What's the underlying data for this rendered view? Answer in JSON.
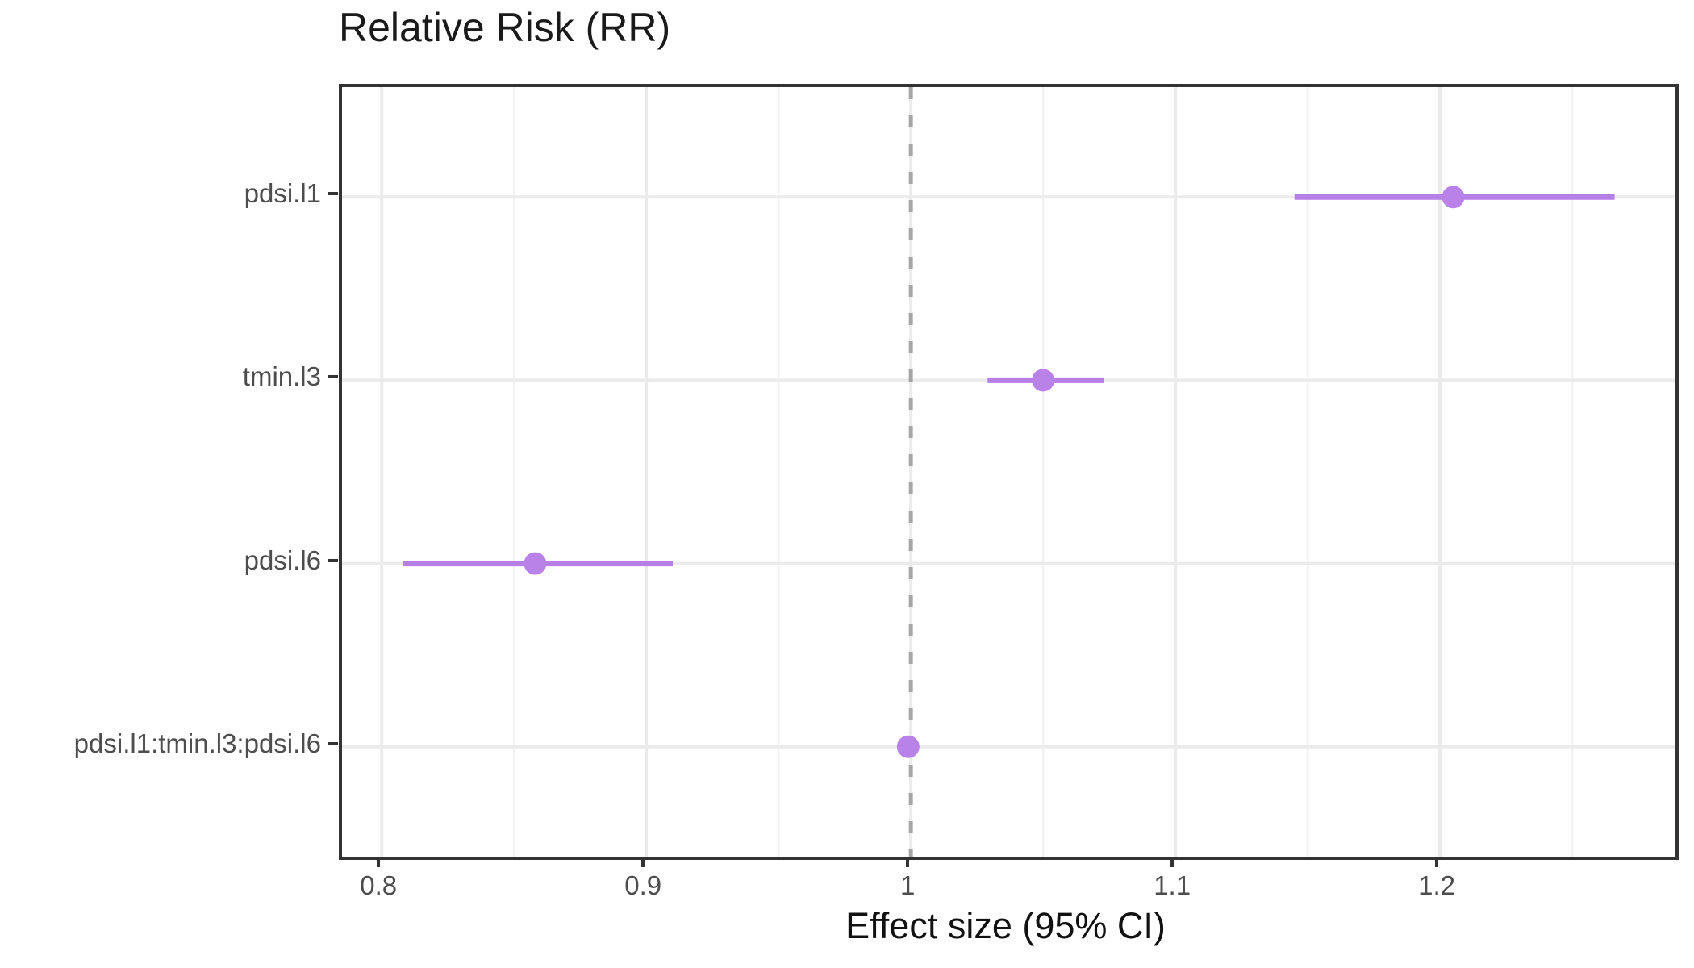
{
  "chart_data": {
    "type": "scatter",
    "subtype": "forest-plot",
    "title": "Relative Risk (RR)",
    "xlabel": "Effect size (95% CI)",
    "ylabel": "",
    "grid": true,
    "legend": "none",
    "categories": [
      "pdsi.l1",
      "tmin.l3",
      "pdsi.l6",
      "pdsi.l1:tmin.l3:pdsi.l6"
    ],
    "points": [
      {
        "label": "pdsi.l1",
        "estimate": 1.205,
        "ci_low": 1.145,
        "ci_high": 1.266
      },
      {
        "label": "tmin.l3",
        "estimate": 1.05,
        "ci_low": 1.029,
        "ci_high": 1.073
      },
      {
        "label": "pdsi.l6",
        "estimate": 0.858,
        "ci_low": 0.808,
        "ci_high": 0.91
      },
      {
        "label": "pdsi.l1:tmin.l3:pdsi.l6",
        "estimate": 0.999,
        "ci_low": 0.995,
        "ci_high": 1.003
      }
    ],
    "xlim": [
      0.785,
      1.289
    ],
    "x_major_ticks": [
      0.8,
      0.9,
      1.0,
      1.1,
      1.2
    ],
    "x_tick_labels": [
      "0.8",
      "0.9",
      "1",
      "1.1",
      "1.2"
    ],
    "x_minor_ticks": [
      0.85,
      0.95,
      1.05,
      1.15,
      1.25
    ],
    "reference_line": 1.0,
    "colors": {
      "point": "#b882e8",
      "ci_line": "#b57fe6",
      "reference_line": "#a6a6a6",
      "grid_major": "#ebebeb",
      "grid_minor": "#f2f2f2",
      "panel_border": "#333333",
      "axis_text": "#4d4d4d",
      "title_text": "#1a1a1a"
    }
  }
}
